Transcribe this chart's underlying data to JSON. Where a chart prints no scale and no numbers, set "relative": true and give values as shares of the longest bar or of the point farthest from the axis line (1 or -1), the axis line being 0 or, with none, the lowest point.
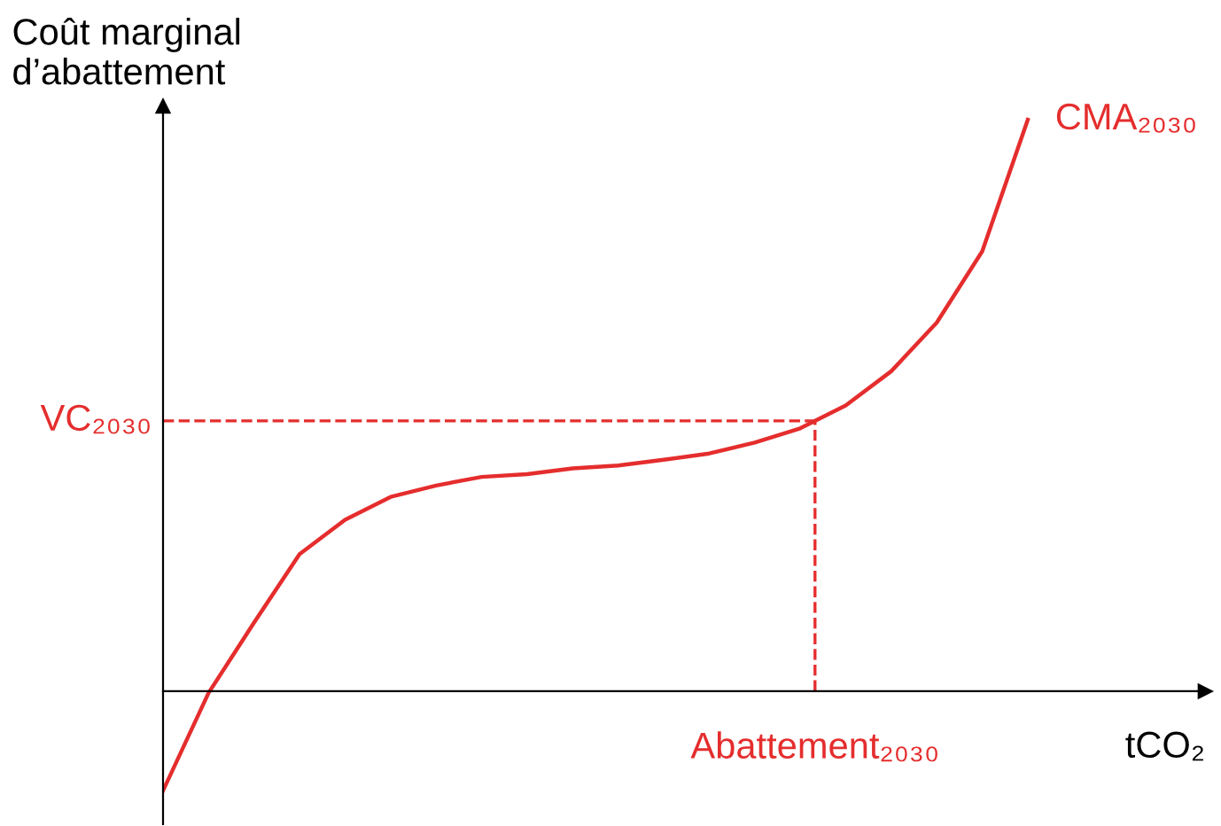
{
  "chart_data": {
    "type": "line",
    "relative": true,
    "xlabel": "tCO₂",
    "ylabel": "Coût marginal\nd’abattement",
    "categories": [
      null,
      null,
      null,
      null,
      null,
      null,
      null,
      null,
      null,
      null,
      null,
      null,
      null,
      null,
      null,
      null,
      null,
      null,
      null,
      null
    ],
    "series": [
      {
        "name": "CMA₂₀₃₀",
        "color": "#e52d2d",
        "values": [
          -0.174,
          -0.003,
          0.12,
          0.24,
          0.3,
          0.34,
          0.36,
          0.375,
          0.38,
          0.39,
          0.395,
          0.405,
          0.416,
          0.435,
          0.46,
          0.5,
          0.56,
          0.645,
          0.77,
          1.0
        ]
      }
    ],
    "ref_lines": [
      {
        "axis": "y",
        "value": 0.473,
        "label": "VC₂₀₃₀",
        "color": "#e52d2d",
        "line_style": "dashed"
      }
    ],
    "annotations": [
      "Abattement₂₀₃₀"
    ],
    "marker": "none",
    "line_style": "solid"
  }
}
